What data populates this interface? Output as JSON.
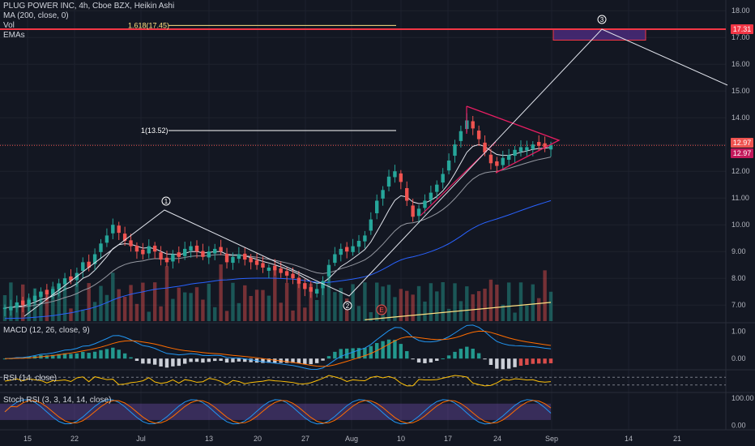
{
  "header": {
    "symbol_line": "PLUG POWER INC, 4h, Cboe BZX, Heikin Ashi",
    "indicators": [
      "MA (200, close, 0)",
      "Vol",
      "EMAs"
    ]
  },
  "macd_label": "MACD (12, 26, close, 9)",
  "rsi_label": "RSI (14, close)",
  "stoch_label": "Stoch RSI (3, 3, 14, 14, close)",
  "price_labels": {
    "target": "17.31",
    "last": "12.97",
    "close": "12.97"
  },
  "fib_labels": {
    "ext": "1.618(17.45)",
    "one": "1(13.52)"
  },
  "wave_labels": [
    "1",
    "2",
    "3"
  ],
  "earnings_marker": "E",
  "colors": {
    "background": "#131722",
    "up": "#26a69a",
    "down": "#ef5350",
    "target_line": "#f23645",
    "pattern": "#e91e63",
    "ma": "#2962ff",
    "stoch_band": "#7e57c2"
  },
  "chart_data": {
    "type": "candlestick",
    "title": "PLUG POWER INC, 4h, Cboe BZX, Heikin Ashi",
    "x_ticks": [
      "15",
      "22",
      "Jul",
      "13",
      "20",
      "27",
      "Aug",
      "10",
      "17",
      "24",
      "Sep",
      "14",
      "21"
    ],
    "price_axis": {
      "ticks": [
        "18.00",
        "17.00",
        "16.00",
        "15.00",
        "14.00",
        "13.00",
        "12.00",
        "11.00",
        "10.00",
        "9.00",
        "8.00",
        "7.00"
      ],
      "range": [
        6.4,
        18.4
      ]
    },
    "macd_axis": {
      "ticks": [
        "1.00",
        "0.00"
      ],
      "range": [
        -0.35,
        1.25
      ]
    },
    "stoch_axis": {
      "ticks": [
        "100.00",
        "0.00"
      ],
      "range": [
        -10,
        115
      ]
    },
    "candles": [
      6.9,
      6.95,
      7.1,
      7.0,
      7.2,
      7.35,
      7.5,
      7.4,
      7.6,
      7.8,
      8.0,
      7.9,
      8.2,
      8.6,
      8.4,
      8.9,
      9.3,
      9.6,
      10.0,
      9.7,
      9.4,
      9.2,
      9.0,
      8.9,
      9.2,
      9.0,
      8.7,
      8.6,
      8.9,
      8.8,
      9.1,
      9.2,
      9.0,
      8.8,
      9.0,
      9.1,
      9.0,
      8.6,
      8.8,
      8.9,
      8.7,
      8.6,
      8.5,
      8.4,
      8.4,
      8.3,
      8.2,
      8.1,
      8.0,
      7.8,
      7.6,
      7.5,
      7.6,
      7.9,
      8.5,
      8.9,
      9.1,
      9.0,
      9.2,
      9.4,
      9.6,
      10.2,
      10.9,
      11.3,
      11.8,
      12.0,
      11.6,
      10.9,
      10.3,
      10.6,
      10.9,
      11.2,
      11.5,
      11.9,
      12.4,
      13.0,
      13.5,
      13.9,
      13.6,
      13.2,
      12.7,
      12.3,
      12.2,
      12.5,
      12.6,
      12.8,
      12.9,
      12.9,
      13.0,
      12.95,
      12.9,
      12.97
    ],
    "target_price": 17.31,
    "last_price": 12.97,
    "fib_levels": [
      {
        "label": "1.618(17.45)",
        "price": 17.45
      },
      {
        "label": "1(13.52)",
        "price": 13.52
      }
    ],
    "elliott_points": [
      {
        "label": "1",
        "date": "Jul 6",
        "price": 10.4
      },
      {
        "label": "2",
        "date": "Jul 31",
        "price": 7.2
      },
      {
        "label": "3",
        "date": "Sep 9",
        "price": 17.3
      }
    ]
  }
}
